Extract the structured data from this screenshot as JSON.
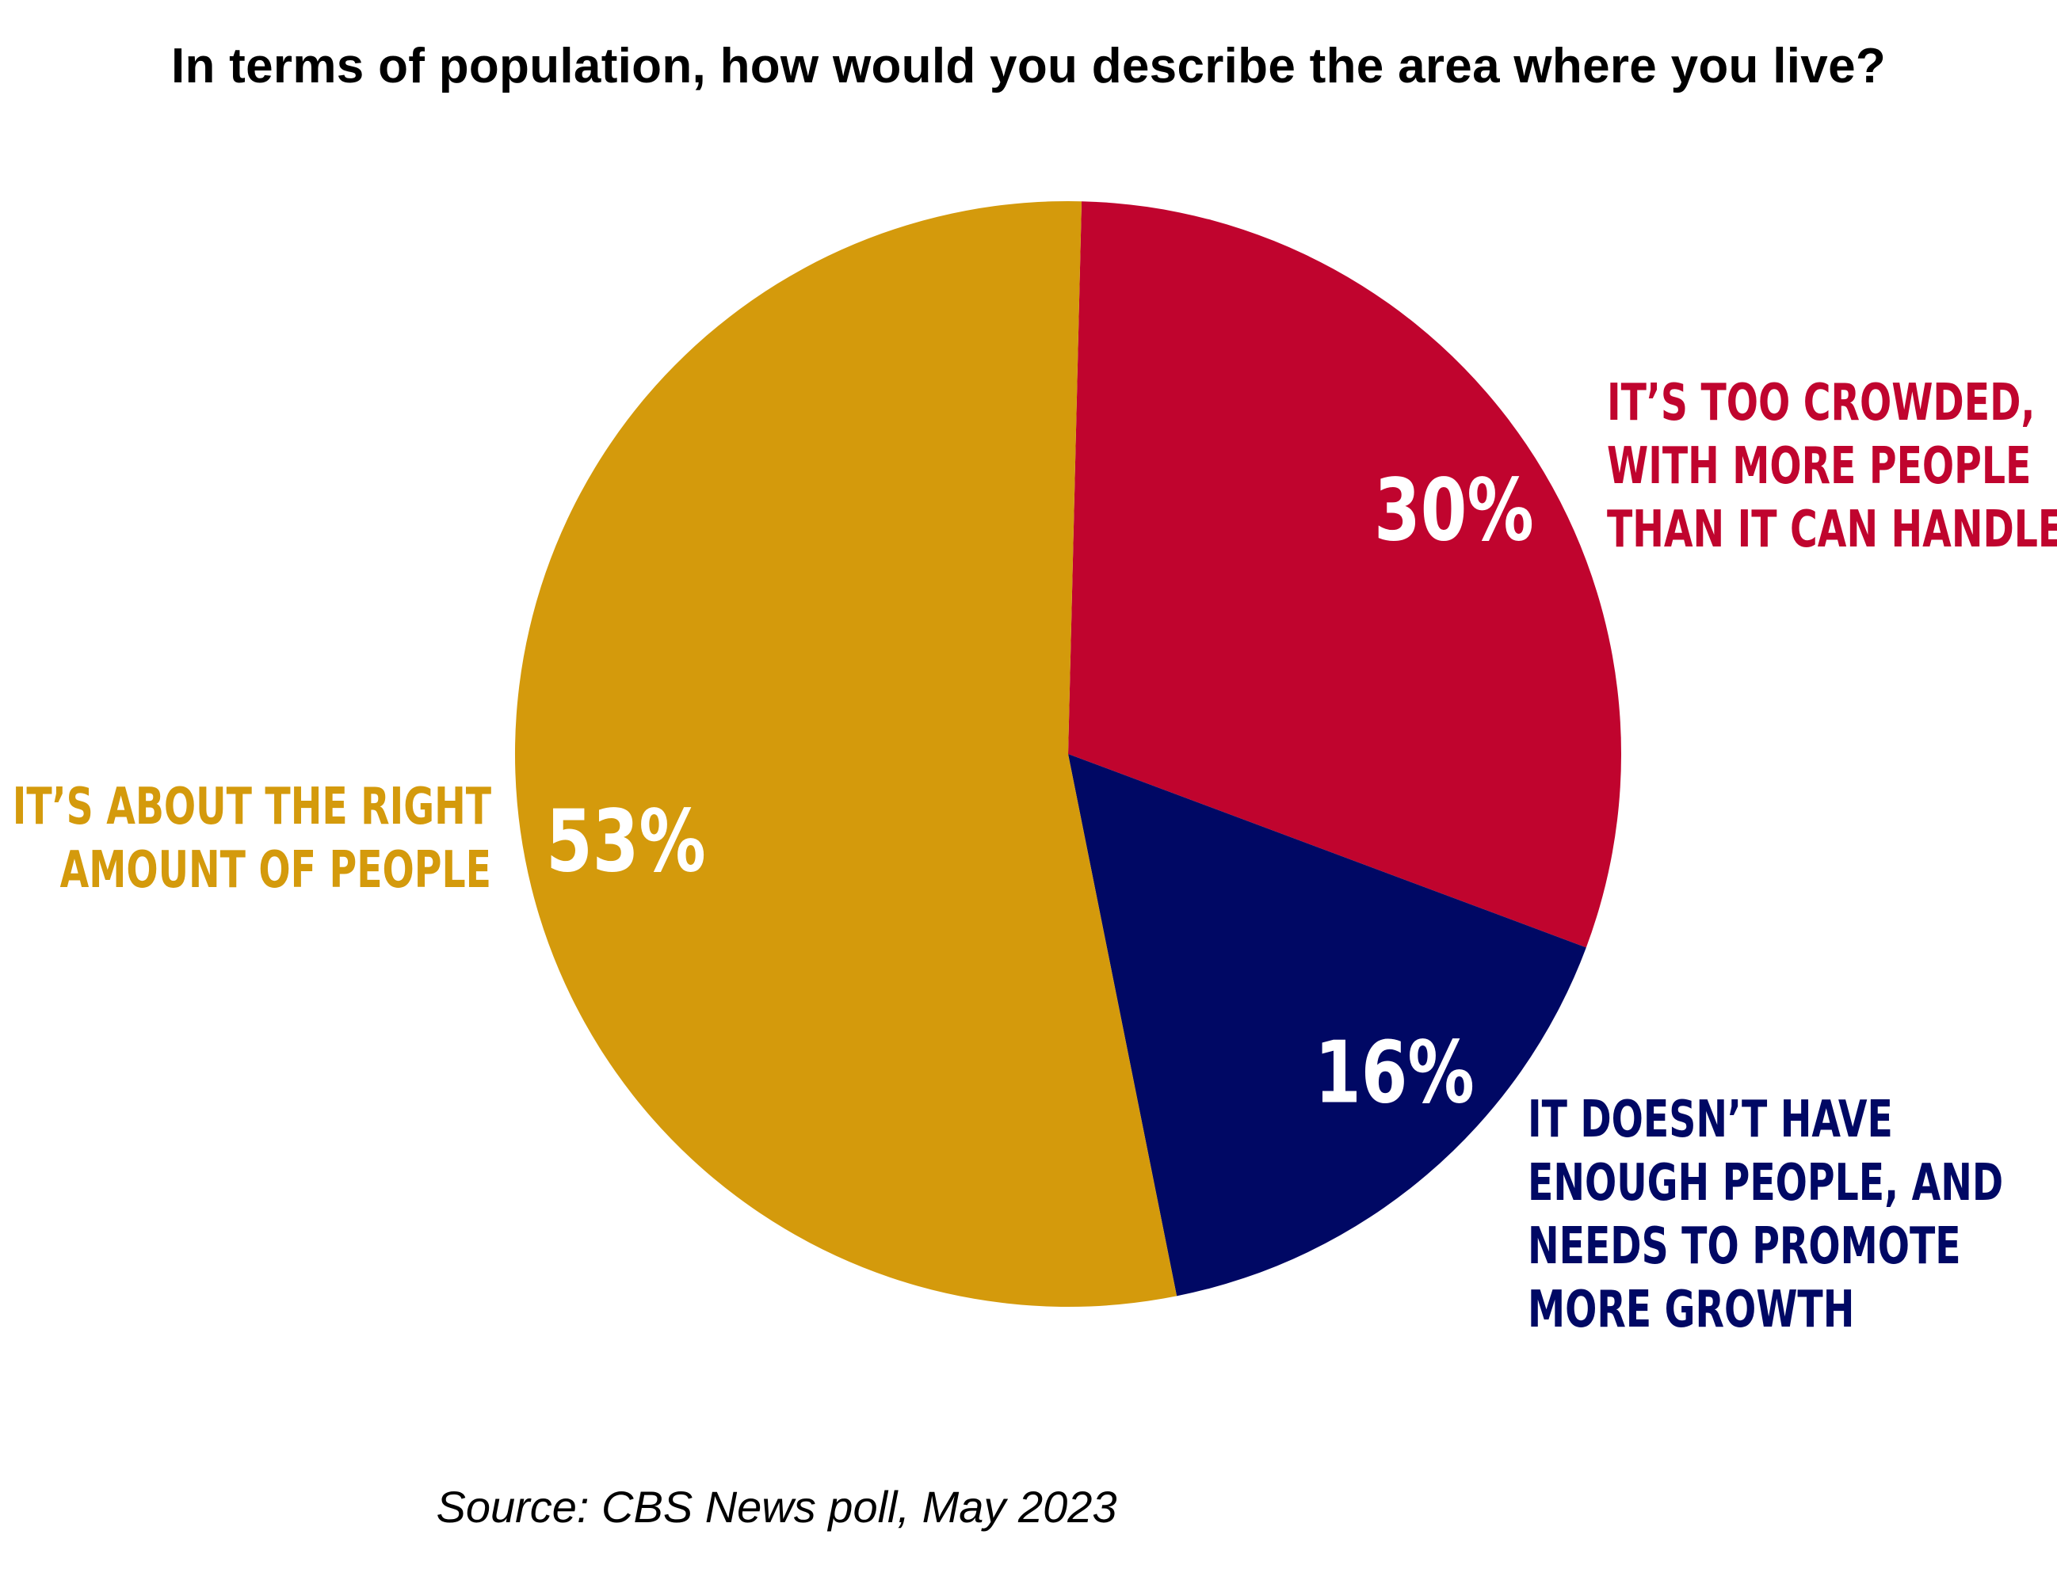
{
  "title": "In terms of population, how would you describe the area where you live?",
  "source": "Source: CBS News poll, May 2023",
  "chart_data": {
    "type": "pie",
    "title": "In terms of population, how would you describe the area where you live?",
    "legend": "none",
    "slices": [
      {
        "label_lines": [
          "IT’S TOO CROWDED,",
          "WITH MORE PEOPLE",
          "THAN IT CAN HANDLE"
        ],
        "value": 30,
        "value_label": "30%",
        "color": "#C0042E"
      },
      {
        "label_lines": [
          "IT DOESN’T HAVE",
          "ENOUGH PEOPLE, AND",
          "NEEDS TO PROMOTE",
          "MORE GROWTH"
        ],
        "value": 16,
        "value_label": "16%",
        "color": "#000864"
      },
      {
        "label_lines": [
          "IT’S ABOUT THE RIGHT",
          "AMOUNT OF PEOPLE"
        ],
        "value": 53,
        "value_label": "53%",
        "color": "#D49A0C"
      }
    ],
    "start_angle_deg": 1.4,
    "direction": "clockwise"
  }
}
